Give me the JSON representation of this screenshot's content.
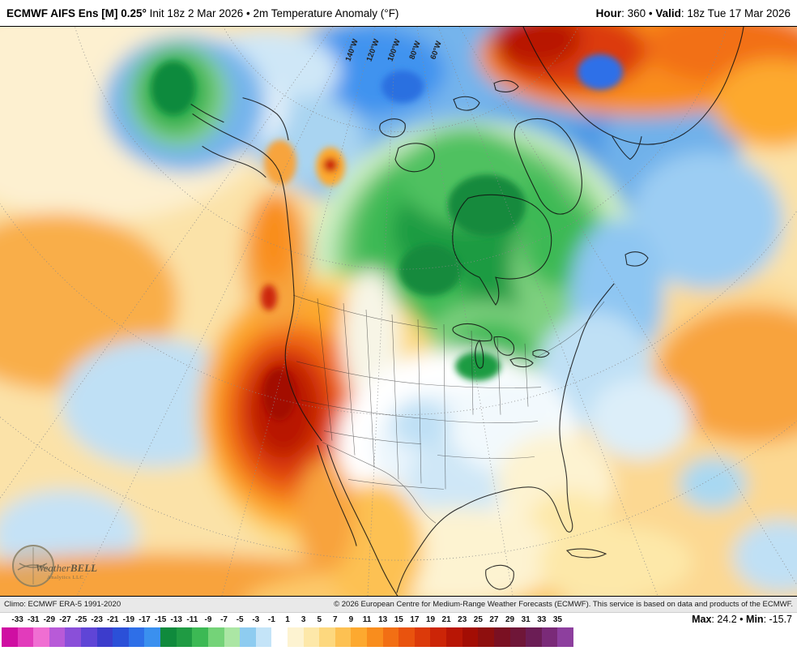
{
  "header": {
    "title_bold": "ECMWF AIFS Ens [M] 0.25°",
    "title_rest": " Init 18z 2 Mar 2026 • 2m Temperature Anomaly (°F)",
    "hour_label": "Hour",
    "hour_value": ": 360",
    "sep": " • ",
    "valid_label": "Valid",
    "valid_value": ": 18z Tue 17 Mar 2026"
  },
  "map": {
    "meridian_labels": [
      "140°W",
      "120°W",
      "100°W",
      "80°W",
      "60°W"
    ],
    "logo_text_1": "Weather",
    "logo_text_2": "BELL",
    "logo_subtext": "Analytics LLC"
  },
  "footer": {
    "climo": "Climo: ECMWF ERA-5 1991-2020",
    "copyright": "© 2026 European Centre for Medium-Range Weather Forecasts (ECMWF). This service is based on data and products of the ECMWF."
  },
  "colorbar": {
    "tick_labels": [
      "-33",
      "-31",
      "-29",
      "-27",
      "-25",
      "-23",
      "-21",
      "-19",
      "-17",
      "-15",
      "-13",
      "-11",
      "-9",
      "-7",
      "-5",
      "-3",
      "-1",
      "1",
      "3",
      "5",
      "7",
      "9",
      "11",
      "13",
      "15",
      "17",
      "19",
      "21",
      "23",
      "25",
      "27",
      "29",
      "31",
      "33",
      "35"
    ],
    "segment_colors": [
      "#cf0ea2",
      "#e23bbb",
      "#f06ed2",
      "#b85ad8",
      "#8a4fd9",
      "#5f45d6",
      "#3c3ccc",
      "#2b50d8",
      "#2e6fe8",
      "#3a90ef",
      "#0f8a3c",
      "#1f9b43",
      "#3cb954",
      "#74d378",
      "#abe6a4",
      "#8eccf0",
      "#c4e4f8",
      "#ffffff",
      "#fdf3d1",
      "#fde8a9",
      "#fdd87e",
      "#fdc152",
      "#fda92f",
      "#f98d1d",
      "#f26f14",
      "#e9530e",
      "#dc3a0a",
      "#cc2507",
      "#b81605",
      "#a30d04",
      "#8e0f0e",
      "#7a1022",
      "#6f1638",
      "#6b1d55",
      "#7a2a78",
      "#8d3f9e"
    ]
  },
  "stats": {
    "max_label": "Max",
    "max_value": ": 24.2",
    "sep": " • ",
    "min_label": "Min",
    "min_value": ": -15.7"
  }
}
